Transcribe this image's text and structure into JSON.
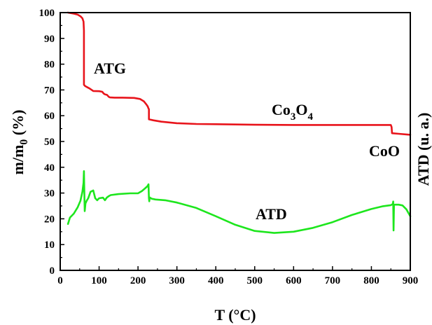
{
  "chart_data": {
    "type": "line",
    "title": "",
    "xlabel_main": "T (",
    "xlabel_unit": "°C",
    "xlabel_close": ")",
    "ylabel_main": "m/m",
    "ylabel_sub": "0",
    "ylabel_unit": " (%)",
    "y2label": "ATD (u. a.)",
    "xlim": [
      0,
      900
    ],
    "ylim": [
      0,
      100
    ],
    "xticks": [
      "0",
      "100",
      "200",
      "300",
      "400",
      "500",
      "600",
      "700",
      "800",
      "900"
    ],
    "yticks": [
      "0",
      "10",
      "20",
      "30",
      "40",
      "50",
      "60",
      "70",
      "80",
      "90",
      "100"
    ],
    "grid": false,
    "annotations": {
      "atg": "ATG",
      "atd": "ATD",
      "coo": "CoO",
      "co3o4_a": "Co",
      "co3o4_b": "3",
      "co3o4_c": "O",
      "co3o4_d": "4"
    },
    "series": [
      {
        "color": "#e8141b",
        "x": [
          20,
          35,
          45,
          52,
          57,
          60,
          61,
          61,
          64,
          70,
          75,
          85,
          100,
          108,
          112,
          115,
          120,
          125,
          128,
          140,
          160,
          190,
          205,
          215,
          222,
          225,
          227,
          228,
          228,
          240,
          260,
          300,
          350,
          400,
          450,
          500,
          600,
          700,
          800,
          850,
          852,
          853,
          870,
          900
        ],
        "y": [
          100,
          99.6,
          99.2,
          98.6,
          97.8,
          96.5,
          93,
          72,
          71.5,
          71,
          70.6,
          69.6,
          69.5,
          69.3,
          68.6,
          68.3,
          68.1,
          67.3,
          67.1,
          67.0,
          67.0,
          66.9,
          66.5,
          65.6,
          64.3,
          63.6,
          62.8,
          62.5,
          58.6,
          58.2,
          57.7,
          57.1,
          56.8,
          56.7,
          56.6,
          56.5,
          56.4,
          56.4,
          56.4,
          56.4,
          55.6,
          53.2,
          53.0,
          52.6
        ]
      },
      {
        "color": "#1de61d",
        "x": [
          20,
          25,
          35,
          45,
          52,
          57,
          60,
          61,
          62,
          63,
          65,
          68,
          72,
          78,
          85,
          90,
          95,
          100,
          110,
          115,
          120,
          125,
          130,
          150,
          180,
          200,
          210,
          218,
          224,
          227,
          228,
          229,
          230,
          235,
          245,
          270,
          300,
          350,
          400,
          450,
          500,
          550,
          600,
          650,
          700,
          750,
          800,
          830,
          850,
          855,
          856,
          857,
          858,
          860,
          870,
          880,
          890,
          900
        ],
        "y": [
          18,
          20.5,
          22,
          24.5,
          27,
          30.5,
          34,
          38.5,
          31,
          23,
          26,
          27,
          28,
          30.5,
          31,
          28,
          27.2,
          28,
          28.2,
          27.2,
          28.3,
          28.8,
          29.2,
          29.6,
          29.9,
          29.9,
          30.8,
          31.8,
          32.6,
          33.4,
          28,
          26.8,
          28.3,
          27.8,
          27.5,
          27.2,
          26.3,
          24.2,
          21,
          17.7,
          15.3,
          14.5,
          15,
          16.5,
          18.7,
          21.5,
          23.8,
          24.9,
          25.3,
          25.7,
          26.7,
          15.5,
          25.4,
          25.5,
          25.5,
          25.2,
          23.7,
          21
        ]
      }
    ]
  }
}
